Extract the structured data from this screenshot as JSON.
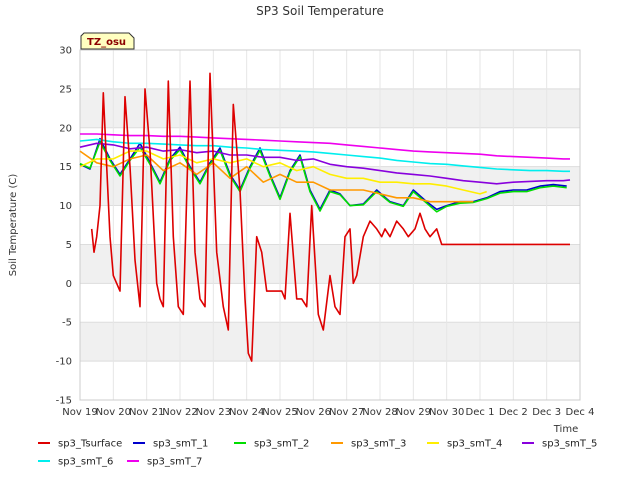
{
  "chart_data": {
    "type": "line",
    "title": "SP3 Soil Temperature",
    "xlabel": "Time",
    "ylabel": "Soil Temperature (C)",
    "site_label": "TZ_osu",
    "x_ticks": [
      "Nov 19",
      "Nov 20",
      "Nov 21",
      "Nov 22",
      "Nov 23",
      "Nov 24",
      "Nov 25",
      "Nov 26",
      "Nov 27",
      "Nov 28",
      "Nov 29",
      "Nov 30",
      "Dec 1",
      "Dec 2",
      "Dec 3",
      "Dec 4"
    ],
    "xlim": [
      0,
      15
    ],
    "ylim": [
      -15,
      30
    ],
    "y_ticks": [
      -15,
      -10,
      -5,
      0,
      5,
      10,
      15,
      20,
      25,
      30
    ],
    "grid": true,
    "legend_position": "bottom",
    "series": [
      {
        "name": "sp3_Tsurface",
        "color": "#dd0000",
        "x": [
          0.35,
          0.42,
          0.5,
          0.6,
          0.7,
          0.8,
          0.9,
          1.0,
          1.2,
          1.35,
          1.5,
          1.65,
          1.8,
          1.95,
          2.1,
          2.3,
          2.4,
          2.5,
          2.65,
          2.8,
          2.95,
          3.1,
          3.3,
          3.45,
          3.6,
          3.75,
          3.9,
          4.1,
          4.3,
          4.45,
          4.6,
          4.8,
          4.95,
          5.05,
          5.15,
          5.3,
          5.45,
          5.6,
          5.8,
          5.95,
          6.05,
          6.15,
          6.3,
          6.5,
          6.65,
          6.8,
          6.95,
          7.15,
          7.3,
          7.5,
          7.65,
          7.8,
          7.95,
          8.1,
          8.2,
          8.3,
          8.5,
          8.7,
          8.9,
          9.05,
          9.15,
          9.3,
          9.5,
          9.7,
          9.85,
          10.05,
          10.2,
          10.35,
          10.5,
          10.7,
          10.85,
          11.0,
          11.15,
          11.35,
          11.55,
          11.75,
          11.85,
          12.0,
          12.2,
          12.4,
          12.6,
          12.8,
          13.0,
          13.2,
          13.4,
          13.6,
          13.8,
          14.0,
          14.2,
          14.4,
          14.6,
          14.7
        ],
        "y": [
          7,
          4,
          6,
          10,
          24.5,
          15,
          6,
          1,
          -1,
          24,
          15,
          3,
          -3,
          25,
          17,
          0,
          -2,
          -3,
          26,
          6,
          -3,
          -4,
          26,
          4,
          -2,
          -3,
          27,
          4,
          -3,
          -6,
          23,
          12,
          -2,
          -9,
          -10,
          6,
          4,
          -1,
          -1,
          -1,
          -1,
          -2,
          9,
          -2,
          -2,
          -3,
          10,
          -4,
          -6,
          1,
          -3,
          -4,
          6,
          7,
          0,
          1,
          6,
          8,
          7,
          6,
          7,
          6,
          8,
          7,
          6,
          7,
          9,
          7,
          6,
          7,
          5,
          5,
          5,
          5,
          5,
          5,
          5,
          5,
          5,
          5,
          5,
          5,
          5,
          5,
          5,
          5,
          5,
          5,
          5,
          5,
          5,
          5
        ]
      },
      {
        "name": "sp3_smT_1",
        "color": "#0000cc",
        "x": [
          0,
          0.3,
          0.6,
          0.9,
          1.2,
          1.5,
          1.8,
          2.1,
          2.4,
          2.7,
          3.0,
          3.3,
          3.6,
          3.9,
          4.2,
          4.5,
          4.8,
          5.1,
          5.4,
          5.7,
          6.0,
          6.3,
          6.6,
          6.9,
          7.2,
          7.5,
          7.8,
          8.1,
          8.5,
          8.9,
          9.3,
          9.7,
          10.0,
          10.4,
          10.7,
          11.0,
          11.4,
          11.8,
          12.2,
          12.6,
          13.0,
          13.4,
          13.8,
          14.2,
          14.6
        ],
        "y": [
          15.3,
          14.7,
          18.6,
          16,
          14,
          16,
          18,
          15.5,
          13,
          16,
          17.5,
          15,
          13,
          15.5,
          17.4,
          14,
          12,
          15,
          17.4,
          14,
          11,
          14.5,
          16.5,
          12,
          9.5,
          12,
          11.5,
          10,
          10.2,
          12,
          10.5,
          10,
          12,
          10.5,
          9.5,
          10,
          10.5,
          10.5,
          11,
          11.8,
          12,
          12,
          12.5,
          12.7,
          12.5
        ]
      },
      {
        "name": "sp3_smT_2",
        "color": "#00dd00",
        "x": [
          0,
          0.3,
          0.6,
          0.9,
          1.2,
          1.5,
          1.8,
          2.1,
          2.4,
          2.7,
          3.0,
          3.3,
          3.6,
          3.9,
          4.2,
          4.5,
          4.8,
          5.1,
          5.4,
          5.7,
          6.0,
          6.3,
          6.6,
          6.9,
          7.2,
          7.5,
          7.8,
          8.1,
          8.5,
          8.9,
          9.3,
          9.7,
          10.0,
          10.4,
          10.7,
          11.0,
          11.4,
          11.8,
          12.2,
          12.6,
          13.0,
          13.4,
          13.8,
          14.2,
          14.6
        ],
        "y": [
          15.4,
          14.8,
          18.2,
          15.8,
          13.8,
          15.8,
          17.5,
          15.3,
          12.8,
          15.8,
          17.2,
          14.8,
          12.8,
          15.3,
          17.1,
          13.8,
          11.8,
          14.8,
          17.1,
          13.8,
          10.8,
          14.3,
          16.3,
          11.8,
          9.3,
          11.8,
          11.4,
          10,
          10.1,
          11.8,
          10.4,
          9.9,
          11.8,
          10.3,
          9.2,
          9.9,
          10.3,
          10.4,
          10.9,
          11.6,
          11.8,
          11.8,
          12.3,
          12.5,
          12.3
        ]
      },
      {
        "name": "sp3_smT_3",
        "color": "#ff9900",
        "x": [
          0,
          0.5,
          1.0,
          1.5,
          2.0,
          2.5,
          3.0,
          3.5,
          4.0,
          4.5,
          5.0,
          5.5,
          6.0,
          6.5,
          7.0,
          7.5,
          8.0,
          8.5,
          9.0,
          9.5,
          10.0,
          10.5,
          11.0,
          11.5,
          11.8
        ],
        "y": [
          17,
          15.5,
          15,
          16,
          16.5,
          14.5,
          15.5,
          14,
          15.5,
          13.5,
          15,
          13,
          14,
          13,
          13,
          12,
          12,
          12,
          11.5,
          11,
          11,
          10.5,
          10.5,
          10.5,
          10.5
        ]
      },
      {
        "name": "sp3_smT_4",
        "color": "#ffee00",
        "x": [
          0,
          0.5,
          1.0,
          1.5,
          2.0,
          2.5,
          3.0,
          3.5,
          4.0,
          4.5,
          5.0,
          5.5,
          6.0,
          6.5,
          7.0,
          7.5,
          8.0,
          8.5,
          9.0,
          9.5,
          10.0,
          10.5,
          11.0,
          11.5,
          12.0,
          12.2
        ],
        "y": [
          15,
          16,
          16,
          17,
          17,
          16,
          16.5,
          15.5,
          16,
          15.5,
          16,
          15,
          15.5,
          14.5,
          15,
          14,
          13.5,
          13.5,
          13,
          13,
          12.8,
          12.8,
          12.5,
          12,
          11.5,
          11.8
        ]
      },
      {
        "name": "sp3_smT_5",
        "color": "#8800dd",
        "x": [
          0,
          0.5,
          1.0,
          1.5,
          2.0,
          2.5,
          3.0,
          3.5,
          4.0,
          4.5,
          5.0,
          5.5,
          6.0,
          6.5,
          7.0,
          7.5,
          8.0,
          8.5,
          9.0,
          9.5,
          10.0,
          10.5,
          11.0,
          11.5,
          12.0,
          12.5,
          13.0,
          13.5,
          14.0,
          14.5,
          14.7
        ],
        "y": [
          17.5,
          18,
          17.8,
          17.3,
          17.5,
          17,
          17.2,
          16.8,
          17,
          16.5,
          16.5,
          16.2,
          16.2,
          15.8,
          16,
          15.3,
          15,
          14.8,
          14.5,
          14.2,
          14,
          13.8,
          13.5,
          13.2,
          13,
          12.8,
          13,
          13.1,
          13.2,
          13.2,
          13.3
        ]
      },
      {
        "name": "sp3_smT_6",
        "color": "#00eeee",
        "x": [
          0,
          0.5,
          1.0,
          1.5,
          2.0,
          2.5,
          3.0,
          3.5,
          4.0,
          4.5,
          5.0,
          5.5,
          6.0,
          6.5,
          7.0,
          7.5,
          8.0,
          8.5,
          9.0,
          9.5,
          10.0,
          10.5,
          11.0,
          11.5,
          12.0,
          12.5,
          13.0,
          13.5,
          14.0,
          14.5,
          14.7
        ],
        "y": [
          18.3,
          18.5,
          18.2,
          18,
          18,
          17.9,
          17.8,
          17.7,
          17.7,
          17.5,
          17.4,
          17.2,
          17.1,
          17,
          16.9,
          16.7,
          16.5,
          16.3,
          16.1,
          15.8,
          15.6,
          15.4,
          15.3,
          15.1,
          14.9,
          14.7,
          14.6,
          14.5,
          14.5,
          14.4,
          14.4
        ]
      },
      {
        "name": "sp3_smT_7",
        "color": "#ee00ee",
        "x": [
          0,
          0.5,
          1.0,
          1.5,
          2.0,
          2.5,
          3.0,
          3.5,
          4.0,
          4.5,
          5.0,
          5.5,
          6.0,
          6.5,
          7.0,
          7.5,
          8.0,
          8.5,
          9.0,
          9.5,
          10.0,
          10.5,
          11.0,
          11.5,
          12.0,
          12.5,
          13.0,
          13.5,
          14.0,
          14.5,
          14.7
        ],
        "y": [
          19.2,
          19.2,
          19.1,
          19,
          19,
          18.9,
          18.9,
          18.8,
          18.7,
          18.6,
          18.5,
          18.4,
          18.3,
          18.2,
          18.1,
          18,
          17.8,
          17.6,
          17.4,
          17.2,
          17,
          16.9,
          16.8,
          16.7,
          16.6,
          16.4,
          16.3,
          16.2,
          16.1,
          16,
          16
        ]
      }
    ]
  }
}
